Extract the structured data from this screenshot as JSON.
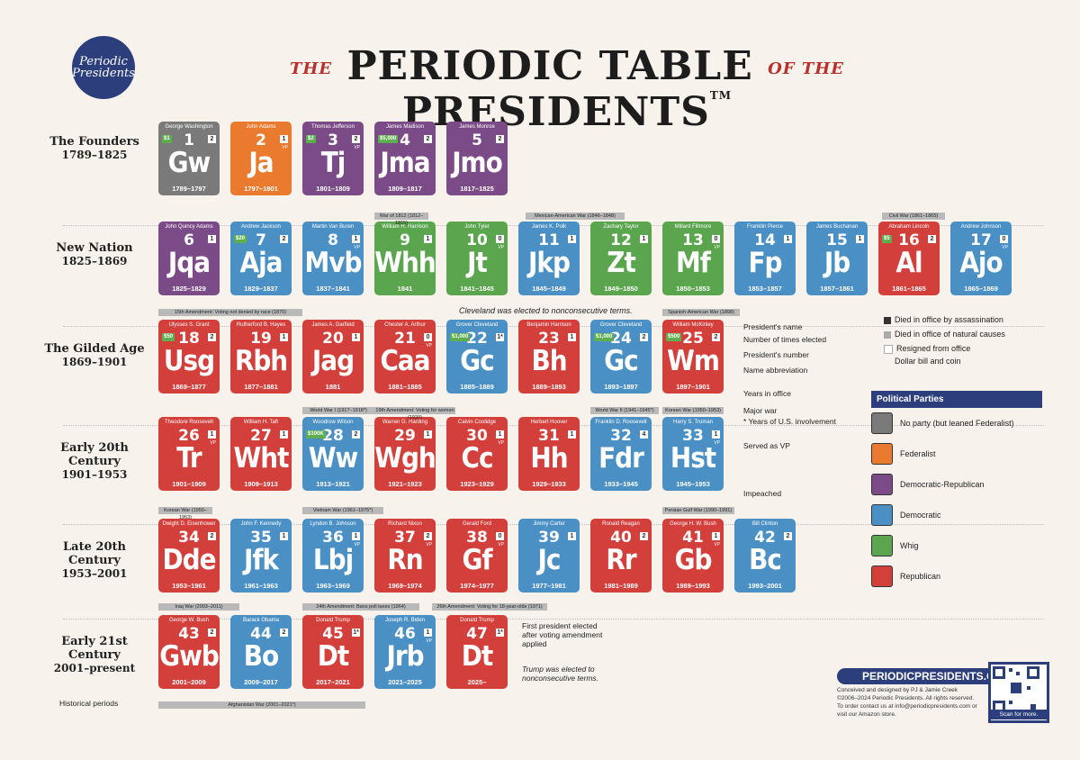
{
  "logo": {
    "text": "Periodic Presidents"
  },
  "title": {
    "pre": "THE",
    "main1": "PERIODIC TABLE",
    "mid": "OF THE",
    "main2": "PRESIDENTS",
    "tm": "TM"
  },
  "eras": [
    {
      "name": "The Founders",
      "years": "1789–1825"
    },
    {
      "name": "New Nation",
      "years": "1825–1869"
    },
    {
      "name": "The Gilded Age",
      "years": "1869–1901"
    },
    {
      "name": "Early 20th Century",
      "years": "1901–1953"
    },
    {
      "name": "Late 20th Century",
      "years": "1953–2001"
    },
    {
      "name": "Early 21st Century",
      "years": "2001–present"
    }
  ],
  "presidents": [
    {
      "name": "George Washington",
      "num": "1",
      "ab": "Gw",
      "yrs": "1789–1797",
      "party": "none",
      "times": "2",
      "dollar": "$1"
    },
    {
      "name": "John Adams",
      "num": "2",
      "ab": "Ja",
      "yrs": "1797–1801",
      "party": "fed",
      "times": "1",
      "vp": "VP"
    },
    {
      "name": "Thomas Jefferson",
      "num": "3",
      "ab": "Tj",
      "yrs": "1801–1809",
      "party": "dr",
      "times": "2",
      "vp": "VP",
      "dollar": "$2"
    },
    {
      "name": "James Madison",
      "num": "4",
      "ab": "Jma",
      "yrs": "1809–1817",
      "party": "dr",
      "times": "2",
      "dollar": "$5,000"
    },
    {
      "name": "James Monroe",
      "num": "5",
      "ab": "Jmo",
      "yrs": "1817–1825",
      "party": "dr",
      "times": "2"
    },
    {
      "name": "John Quincy Adams",
      "num": "6",
      "ab": "Jqa",
      "yrs": "1825–1829",
      "party": "dr",
      "times": "1"
    },
    {
      "name": "Andrew Jackson",
      "num": "7",
      "ab": "Aja",
      "yrs": "1829–1837",
      "party": "dem",
      "times": "2",
      "dollar": "$20"
    },
    {
      "name": "Martin Van Buren",
      "num": "8",
      "ab": "Mvb",
      "yrs": "1837–1841",
      "party": "dem",
      "times": "1",
      "vp": "VP"
    },
    {
      "name": "William H. Harrison",
      "num": "9",
      "ab": "Whh",
      "yrs": "1841",
      "party": "whig",
      "times": "1"
    },
    {
      "name": "John Tyler",
      "num": "10",
      "ab": "Jt",
      "yrs": "1841–1845",
      "party": "whig",
      "times": "0",
      "vp": "VP"
    },
    {
      "name": "James K. Polk",
      "num": "11",
      "ab": "Jkp",
      "yrs": "1845–1849",
      "party": "dem",
      "times": "1"
    },
    {
      "name": "Zachary Taylor",
      "num": "12",
      "ab": "Zt",
      "yrs": "1849–1850",
      "party": "whig",
      "times": "1"
    },
    {
      "name": "Millard Fillmore",
      "num": "13",
      "ab": "Mf",
      "yrs": "1850–1853",
      "party": "whig",
      "times": "0",
      "vp": "VP"
    },
    {
      "name": "Franklin Pierce",
      "num": "14",
      "ab": "Fp",
      "yrs": "1853–1857",
      "party": "dem",
      "times": "1"
    },
    {
      "name": "James Buchanan",
      "num": "15",
      "ab": "Jb",
      "yrs": "1857–1861",
      "party": "dem",
      "times": "1"
    },
    {
      "name": "Abraham Lincoln",
      "num": "16",
      "ab": "Al",
      "yrs": "1861–1865",
      "party": "rep",
      "times": "2",
      "dollar": "$5"
    },
    {
      "name": "Andrew Johnson",
      "num": "17",
      "ab": "Ajo",
      "yrs": "1865–1869",
      "party": "dem",
      "times": "0",
      "vp": "VP"
    },
    {
      "name": "Ulysses S. Grant",
      "num": "18",
      "ab": "Usg",
      "yrs": "1869–1877",
      "party": "rep",
      "times": "2",
      "dollar": "$50"
    },
    {
      "name": "Rutherford B. Hayes",
      "num": "19",
      "ab": "Rbh",
      "yrs": "1877–1881",
      "party": "rep",
      "times": "1"
    },
    {
      "name": "James A. Garfield",
      "num": "20",
      "ab": "Jag",
      "yrs": "1881",
      "party": "rep",
      "times": "1"
    },
    {
      "name": "Chester A. Arthur",
      "num": "21",
      "ab": "Caa",
      "yrs": "1881–1885",
      "party": "rep",
      "times": "0",
      "vp": "VP"
    },
    {
      "name": "Grover Cleveland",
      "num": "22",
      "ab": "Gc",
      "yrs": "1885–1889",
      "party": "dem",
      "times": "1*",
      "dollar": "$1,000"
    },
    {
      "name": "Benjamin Harrison",
      "num": "23",
      "ab": "Bh",
      "yrs": "1889–1893",
      "party": "rep",
      "times": "1"
    },
    {
      "name": "Grover Cleveland",
      "num": "24",
      "ab": "Gc",
      "yrs": "1893–1897",
      "party": "dem",
      "times": "2",
      "dollar": "$1,000"
    },
    {
      "name": "William McKinley",
      "num": "25",
      "ab": "Wm",
      "yrs": "1897–1901",
      "party": "rep",
      "times": "2",
      "dollar": "$500"
    },
    {
      "name": "Theodore Roosevelt",
      "num": "26",
      "ab": "Tr",
      "yrs": "1901–1909",
      "party": "rep",
      "times": "1",
      "vp": "VP"
    },
    {
      "name": "William H. Taft",
      "num": "27",
      "ab": "Wht",
      "yrs": "1909–1913",
      "party": "rep",
      "times": "1"
    },
    {
      "name": "Woodrow Wilson",
      "num": "28",
      "ab": "Ww",
      "yrs": "1913–1921",
      "party": "dem",
      "times": "2",
      "dollar": "$100K"
    },
    {
      "name": "Warren G. Harding",
      "num": "29",
      "ab": "Wgh",
      "yrs": "1921–1923",
      "party": "rep",
      "times": "1"
    },
    {
      "name": "Calvin Coolidge",
      "num": "30",
      "ab": "Cc",
      "yrs": "1923–1929",
      "party": "rep",
      "times": "1",
      "vp": "VP"
    },
    {
      "name": "Herbert Hoover",
      "num": "31",
      "ab": "Hh",
      "yrs": "1929–1933",
      "party": "rep",
      "times": "1"
    },
    {
      "name": "Franklin D. Roosevelt",
      "num": "32",
      "ab": "Fdr",
      "yrs": "1933–1945",
      "party": "dem",
      "times": "4"
    },
    {
      "name": "Harry S. Truman",
      "num": "33",
      "ab": "Hst",
      "yrs": "1945–1953",
      "party": "dem",
      "times": "1",
      "vp": "VP"
    },
    {
      "name": "Dwight D. Eisenhower",
      "num": "34",
      "ab": "Dde",
      "yrs": "1953–1961",
      "party": "rep",
      "times": "2"
    },
    {
      "name": "John F. Kennedy",
      "num": "35",
      "ab": "Jfk",
      "yrs": "1961–1963",
      "party": "dem",
      "times": "1"
    },
    {
      "name": "Lyndon B. Johnson",
      "num": "36",
      "ab": "Lbj",
      "yrs": "1963–1969",
      "party": "dem",
      "times": "1",
      "vp": "VP"
    },
    {
      "name": "Richard Nixon",
      "num": "37",
      "ab": "Rn",
      "yrs": "1969–1974",
      "party": "rep",
      "times": "2",
      "vp": "VP"
    },
    {
      "name": "Gerald Ford",
      "num": "38",
      "ab": "Gf",
      "yrs": "1974–1977",
      "party": "rep",
      "times": "0",
      "vp": "VP"
    },
    {
      "name": "Jimmy Carter",
      "num": "39",
      "ab": "Jc",
      "yrs": "1977–1981",
      "party": "dem",
      "times": "1"
    },
    {
      "name": "Ronald Reagan",
      "num": "40",
      "ab": "Rr",
      "yrs": "1981–1989",
      "party": "rep",
      "times": "2"
    },
    {
      "name": "George H. W. Bush",
      "num": "41",
      "ab": "Gb",
      "yrs": "1989–1993",
      "party": "rep",
      "times": "1",
      "vp": "VP"
    },
    {
      "name": "Bill Clinton",
      "num": "42",
      "ab": "Bc",
      "yrs": "1993–2001",
      "party": "dem",
      "times": "2"
    },
    {
      "name": "George W. Bush",
      "num": "43",
      "ab": "Gwb",
      "yrs": "2001–2009",
      "party": "rep",
      "times": "2"
    },
    {
      "name": "Barack Obama",
      "num": "44",
      "ab": "Bo",
      "yrs": "2009–2017",
      "party": "dem",
      "times": "2"
    },
    {
      "name": "Donald Trump",
      "num": "45",
      "ab": "Dt",
      "yrs": "2017–2021",
      "party": "rep",
      "times": "1*"
    },
    {
      "name": "Joseph R. Biden",
      "num": "46",
      "ab": "Jrb",
      "yrs": "2021–2025",
      "party": "dem",
      "times": "1",
      "vp": "VP"
    },
    {
      "name": "Donald Trump",
      "num": "47",
      "ab": "Dt",
      "yrs": "2025–",
      "party": "rep",
      "times": "1*"
    }
  ],
  "wars": [
    "War of 1812 (1812–1815)",
    "Mexican-American War (1846–1848)",
    "Civil War (1861–1865)",
    "Spanish-American War (1898)",
    "World War I (1917–1918*)",
    "World War II (1941–1945*)",
    "Korean War (1950–1953)",
    "Korean War (1950–1953)",
    "Vietnam War (1961–1975*)",
    "Persian Gulf War (1990–1991)",
    "Iraq War (2003–2011)",
    "Afghanistan War (2001–2021*)"
  ],
  "amendments": [
    "15th Amendment: Voting not denied by race (1870)",
    "19th Amendment: Voting for women (1920)",
    "24th Amendment: Bans poll taxes (1964)",
    "26th Amendment: Voting for 18-year-olds (1971)"
  ],
  "notes": {
    "cleveland": "Cleveland was elected to nonconsecutive terms.",
    "key_name": "President's name",
    "key_times": "Number of times elected",
    "key_num": "President's number",
    "key_abbr": "Name abbreviation",
    "key_years": "Years in office",
    "key_war": "Major war",
    "key_war2": "* Years of U.S. involvement",
    "key_vp": "Served as VP",
    "impeached": "Impeached",
    "first_pres": "First president elected after voting amendment applied",
    "trump": "Trump was elected to nonconsecutive terms.",
    "historical": "Historical periods"
  },
  "marks": {
    "assassination": "Died in office by assassination",
    "natural": "Died in office of natural causes",
    "resigned": "Resigned from office",
    "dollar": "Dollar bill and coin"
  },
  "legend": {
    "title": "Political Parties",
    "items": [
      {
        "label": "No party (but leaned Federalist)",
        "color": "#7a7a7a"
      },
      {
        "label": "Federalist",
        "color": "#ea7a2e"
      },
      {
        "label": "Democratic-Republican",
        "color": "#7b4b87"
      },
      {
        "label": "Democratic",
        "color": "#4a90c5"
      },
      {
        "label": "Whig",
        "color": "#5aa54d"
      },
      {
        "label": "Republican",
        "color": "#d33f3b"
      }
    ]
  },
  "footer": {
    "site": "PERIODICPRESIDENTS.COM",
    "credit": "Conceived and designed by PJ & Jamie Creek",
    "copy": "©2006–2024 Periodic Presidents. All rights reserved.",
    "order": "To order contact us at info@periodicpresidents.com or visit our Amazon store.",
    "scan": "Scan for more."
  }
}
